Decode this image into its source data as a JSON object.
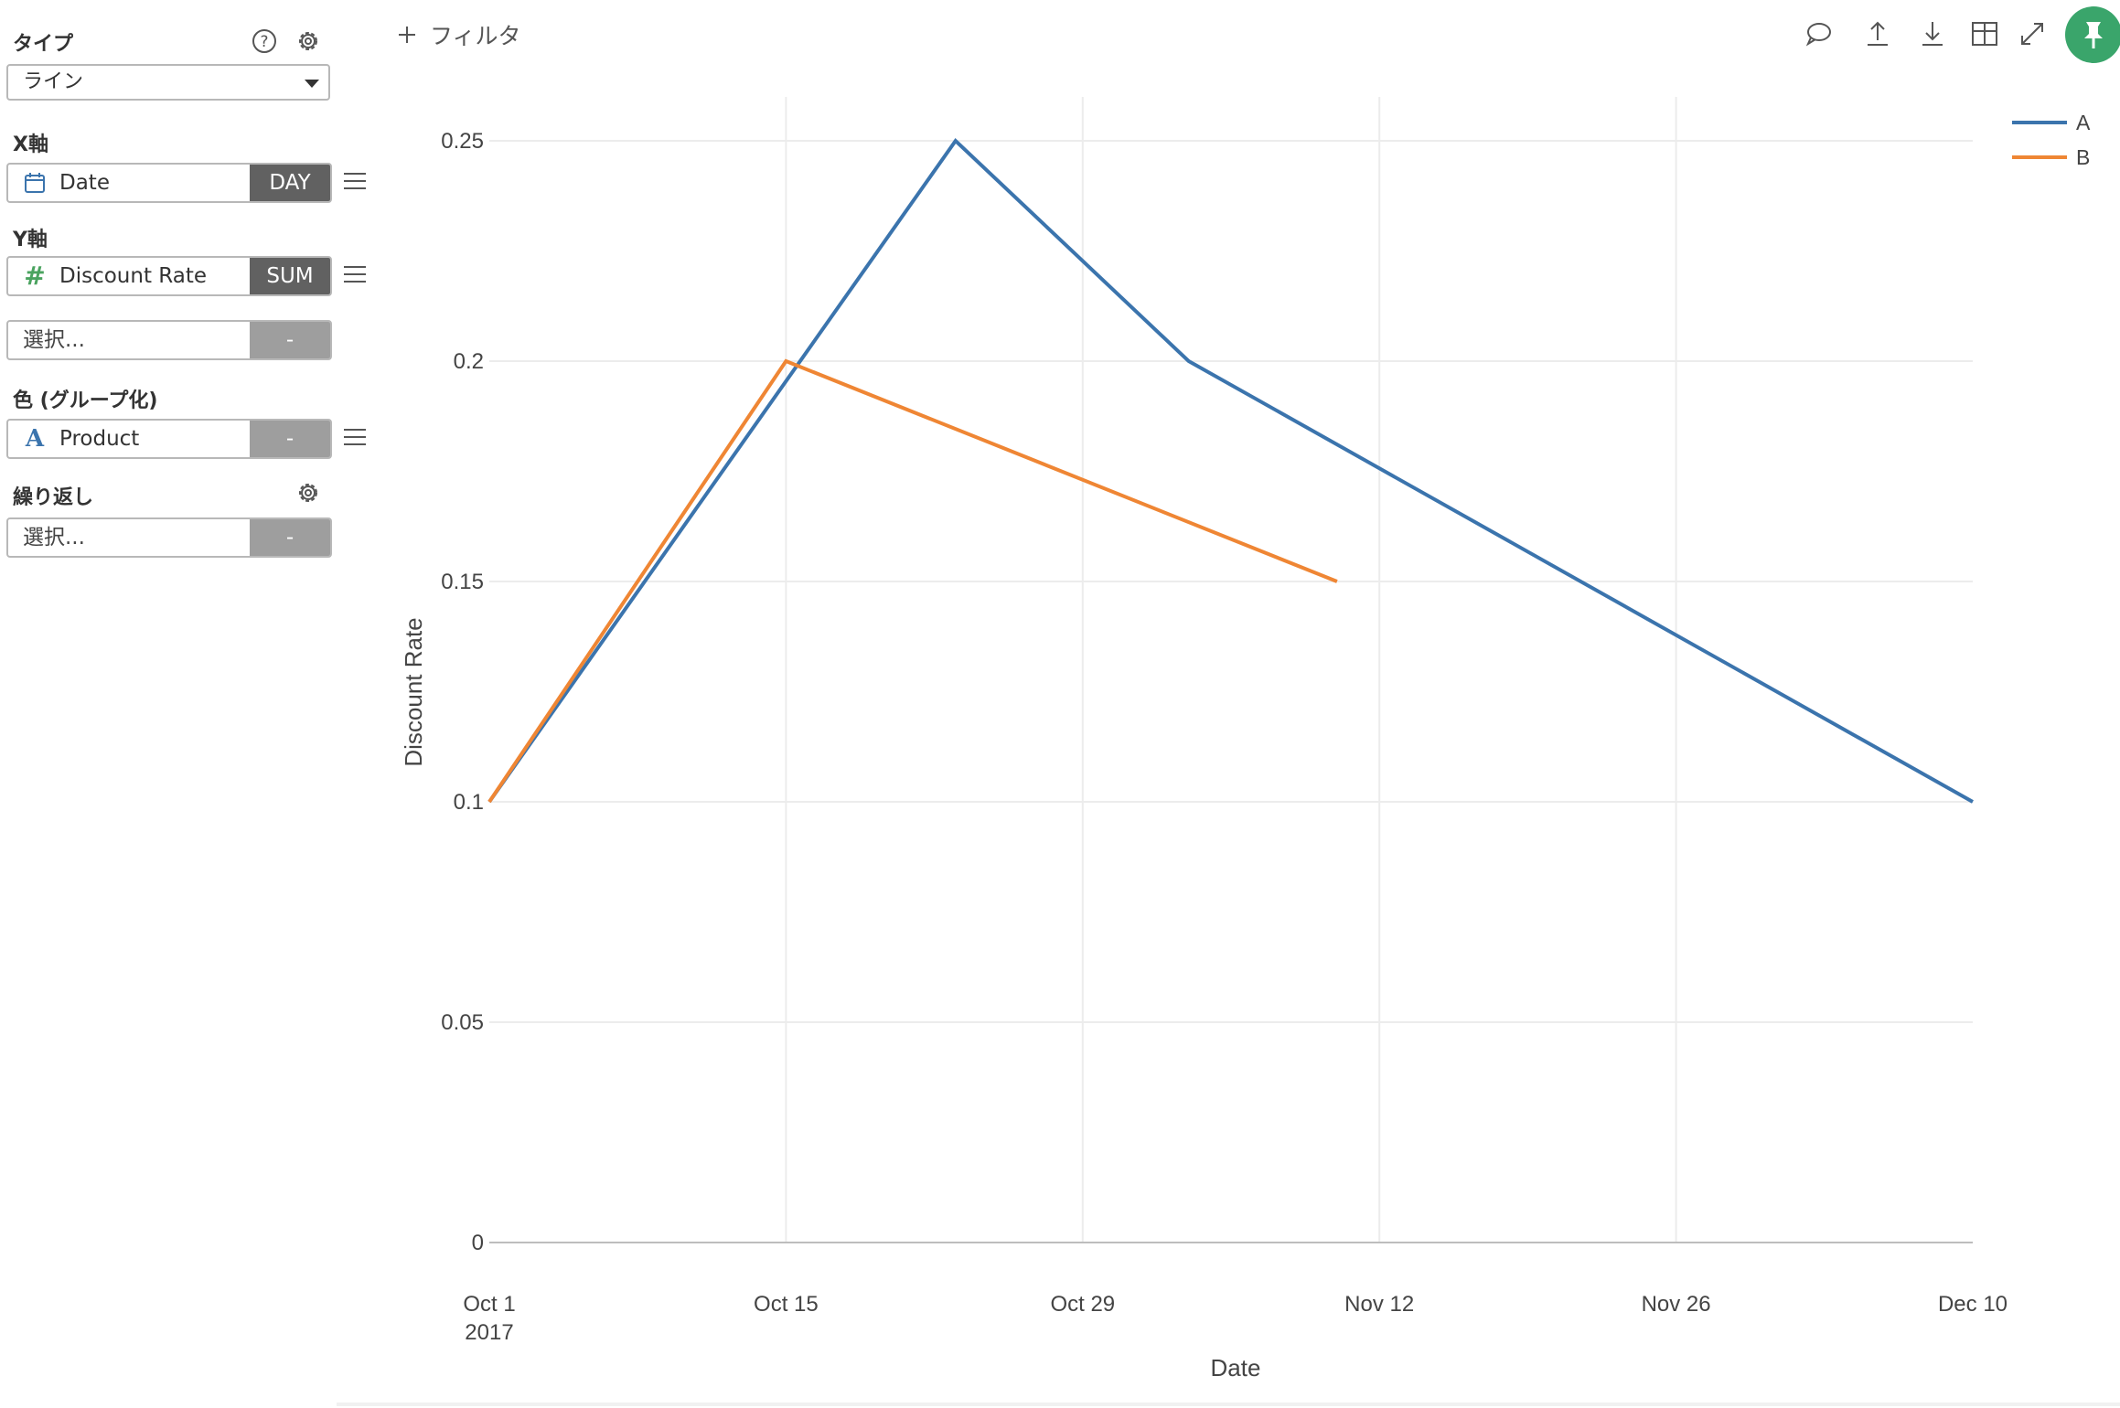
{
  "sidebar": {
    "type_label": "タイプ",
    "type_value": "ライン",
    "xaxis_label": "X軸",
    "xaxis_field": "Date",
    "xaxis_badge": "DAY",
    "yaxis_label": "Y軸",
    "yaxis_field": "Discount Rate",
    "yaxis_badge": "SUM",
    "yaxis2_placeholder": "選択...",
    "yaxis2_badge": "-",
    "color_label": "色 (グループ化)",
    "color_field": "Product",
    "color_badge": "-",
    "repeat_label": "繰り返し",
    "repeat_placeholder": "選択...",
    "repeat_badge": "-"
  },
  "topbar": {
    "filter_label": "フィルタ",
    "icons": [
      "comment-icon",
      "upload-icon",
      "download-icon",
      "table-icon",
      "expand-icon",
      "pin-icon"
    ]
  },
  "colors": {
    "series_a": "#3b74ad",
    "series_b": "#ef8634",
    "pin": "#3aa56b",
    "badge_dark": "#616161",
    "badge_light": "#9e9e9e"
  },
  "chart_data": {
    "type": "line",
    "xlabel": "Date",
    "ylabel": "Discount Rate",
    "x_ticks": [
      "2017-10-01",
      "2017-10-15",
      "2017-10-29",
      "2017-11-12",
      "2017-11-26",
      "2017-12-10"
    ],
    "x_tick_labels": [
      [
        "Oct 1",
        "2017"
      ],
      [
        "Oct 15"
      ],
      [
        "Oct 29"
      ],
      [
        "Nov 12"
      ],
      [
        "Nov 26"
      ],
      [
        "Dec 10"
      ]
    ],
    "y_ticks": [
      0,
      0.05,
      0.1,
      0.15,
      0.2,
      0.25
    ],
    "y_tick_labels": [
      "0",
      "0.05",
      "0.1",
      "0.15",
      "0.2",
      "0.25"
    ],
    "xlim": [
      "2017-10-01",
      "2017-12-10"
    ],
    "ylim": [
      0,
      0.25
    ],
    "grid": true,
    "legend_position": "top-right",
    "series": [
      {
        "name": "A",
        "points": [
          {
            "x": "2017-10-01",
            "y": 0.1
          },
          {
            "x": "2017-10-23",
            "y": 0.25
          },
          {
            "x": "2017-11-03",
            "y": 0.2
          },
          {
            "x": "2017-12-10",
            "y": 0.1
          }
        ]
      },
      {
        "name": "B",
        "points": [
          {
            "x": "2017-10-01",
            "y": 0.1
          },
          {
            "x": "2017-10-15",
            "y": 0.2
          },
          {
            "x": "2017-11-10",
            "y": 0.15
          }
        ]
      }
    ]
  }
}
